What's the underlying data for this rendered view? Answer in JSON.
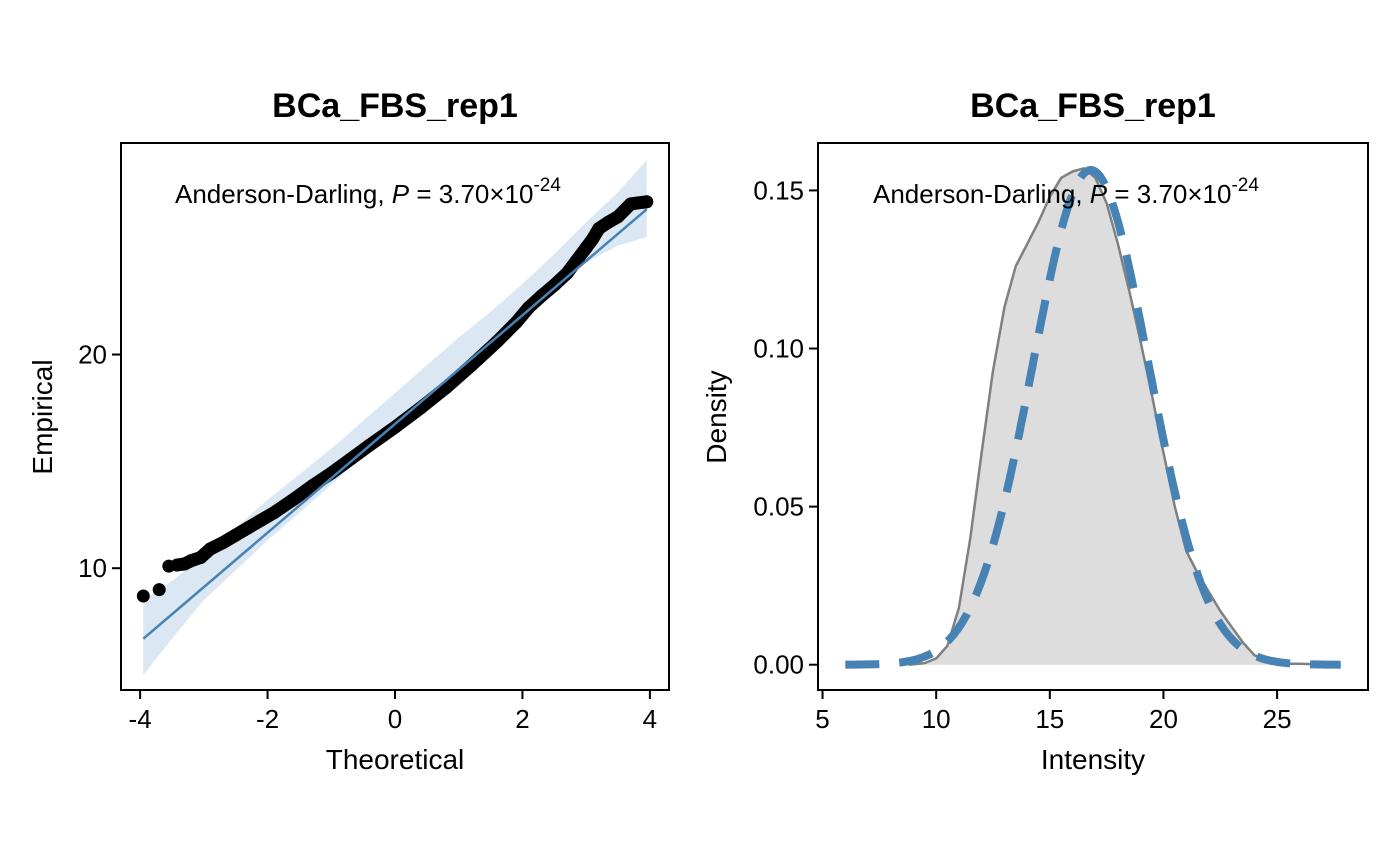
{
  "chart_data": [
    {
      "type": "scatter",
      "title": "BCa_FBS_rep1",
      "xlabel": "Theoretical",
      "ylabel": "Empirical",
      "xlim": [
        -4.3,
        4.3
      ],
      "ylim": [
        4.3,
        29.9
      ],
      "x_ticks": [
        -4,
        -2,
        0,
        2,
        4
      ],
      "x_tick_labels": [
        "-4",
        "-2",
        "0",
        "2",
        "4"
      ],
      "y_ticks": [
        10,
        20
      ],
      "y_tick_labels": [
        "10",
        "20"
      ],
      "annotation": {
        "prefix": "Anderson-Darling, ",
        "p_symbol": "P",
        "equals": " = 3.70×10",
        "exponent": "-24"
      },
      "qq_points": [
        [
          -3.95,
          8.7
        ],
        [
          -3.7,
          9.0
        ],
        [
          -3.55,
          10.1
        ],
        [
          -3.42,
          10.15
        ],
        [
          -3.3,
          10.2
        ],
        [
          -3.2,
          10.35
        ],
        [
          -3.05,
          10.5
        ],
        [
          -2.9,
          10.9
        ],
        [
          -2.7,
          11.2
        ],
        [
          -2.5,
          11.55
        ],
        [
          -2.3,
          11.9
        ],
        [
          -2.1,
          12.25
        ],
        [
          -1.9,
          12.6
        ],
        [
          -1.6,
          13.2
        ],
        [
          -1.3,
          13.85
        ],
        [
          -1.0,
          14.45
        ],
        [
          -0.7,
          15.1
        ],
        [
          -0.4,
          15.75
        ],
        [
          0.0,
          16.6
        ],
        [
          0.4,
          17.5
        ],
        [
          0.8,
          18.45
        ],
        [
          1.2,
          19.5
        ],
        [
          1.6,
          20.6
        ],
        [
          1.9,
          21.5
        ],
        [
          2.1,
          22.2
        ],
        [
          2.3,
          22.75
        ],
        [
          2.5,
          23.25
        ],
        [
          2.7,
          23.8
        ],
        [
          2.85,
          24.4
        ],
        [
          3.0,
          25.0
        ],
        [
          3.1,
          25.4
        ],
        [
          3.2,
          25.9
        ],
        [
          3.35,
          26.2
        ],
        [
          3.5,
          26.45
        ],
        [
          3.7,
          27.05
        ],
        [
          3.95,
          27.15
        ]
      ],
      "reference_line": {
        "x": [
          -3.95,
          3.95
        ],
        "y": [
          6.7,
          26.8
        ]
      },
      "confidence_band": {
        "x": [
          -3.95,
          -3.5,
          -3.0,
          -2.5,
          -2.0,
          -1.5,
          -1.0,
          0.0,
          1.0,
          1.5,
          2.0,
          2.5,
          3.0,
          3.5,
          3.95
        ],
        "lower": [
          5.0,
          6.7,
          8.5,
          9.9,
          11.3,
          12.6,
          13.9,
          16.6,
          19.3,
          20.6,
          21.9,
          23.1,
          24.3,
          25.1,
          25.5
        ],
        "upper": [
          8.5,
          9.4,
          10.6,
          11.9,
          13.2,
          14.4,
          15.6,
          18.2,
          20.8,
          22.0,
          23.3,
          24.7,
          26.2,
          27.6,
          29.1
        ]
      },
      "colors": {
        "points": "#000000",
        "line": "#4682b4",
        "band": "#dbe7f3"
      }
    },
    {
      "type": "area",
      "title": "BCa_FBS_rep1",
      "xlabel": "Intensity",
      "ylabel": "Density",
      "xlim": [
        4.8,
        29.0
      ],
      "ylim": [
        -0.008,
        0.165
      ],
      "x_ticks": [
        5,
        10,
        15,
        20,
        25
      ],
      "x_tick_labels": [
        "5",
        "10",
        "15",
        "20",
        "25"
      ],
      "y_ticks": [
        0.0,
        0.05,
        0.1,
        0.15
      ],
      "y_tick_labels": [
        "0.00",
        "0.05",
        "0.10",
        "0.15"
      ],
      "annotation": {
        "prefix": "Anderson-Darling, ",
        "p_symbol": "P",
        "equals": " = 3.70×10",
        "exponent": "-24"
      },
      "empirical_density": {
        "x": [
          8.8,
          9.5,
          10.0,
          10.5,
          11.0,
          11.5,
          12.0,
          12.5,
          13.0,
          13.5,
          14.0,
          14.5,
          15.0,
          15.5,
          16.0,
          16.5,
          17.0,
          17.5,
          18.0,
          18.5,
          19.0,
          19.5,
          20.0,
          20.5,
          21.0,
          21.5,
          22.0,
          22.5,
          23.0,
          23.5,
          24.0,
          24.5,
          25.0,
          25.5,
          26.0,
          26.5,
          27.0,
          27.5
        ],
        "y": [
          0.0,
          0.0005,
          0.002,
          0.006,
          0.018,
          0.04,
          0.067,
          0.093,
          0.113,
          0.126,
          0.133,
          0.14,
          0.148,
          0.154,
          0.156,
          0.157,
          0.154,
          0.146,
          0.133,
          0.118,
          0.102,
          0.085,
          0.067,
          0.05,
          0.036,
          0.029,
          0.023,
          0.017,
          0.012,
          0.007,
          0.003,
          0.0015,
          0.0007,
          0.0003,
          0.0003,
          0.0002,
          0.0001,
          0.0
        ]
      },
      "normal_fit": {
        "mean": 16.8,
        "sd": 2.55,
        "x_range": [
          6.0,
          27.8
        ]
      },
      "colors": {
        "fill": "#dddddd",
        "outline": "#808080",
        "normal": "#4682b4"
      }
    }
  ]
}
